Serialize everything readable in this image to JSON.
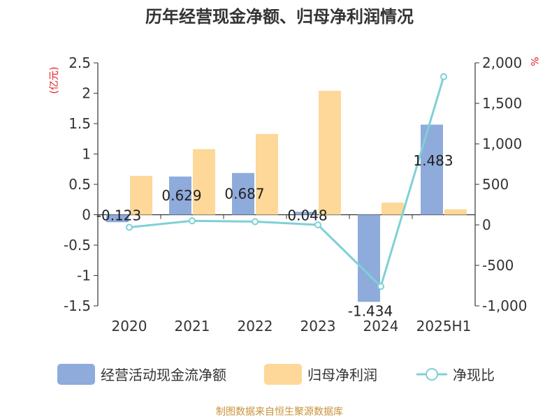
{
  "chart_data": {
    "type": "bar",
    "title": "历年经营现金净额、归母净利润情况",
    "categories": [
      "2020",
      "2021",
      "2022",
      "2023",
      "2024",
      "2025H1"
    ],
    "left_axis": {
      "unit": "(亿元)",
      "ylim": [
        -1.5,
        2.5
      ],
      "ticks": [
        "2.5",
        "2",
        "1.5",
        "1",
        "0.5",
        "0",
        "-0.5",
        "-1",
        "-1.5"
      ]
    },
    "right_axis": {
      "unit": "%",
      "ylim": [
        -1000,
        2000
      ],
      "ticks": [
        "2,000",
        "1,500",
        "1,000",
        "500",
        "0",
        "-500",
        "-1,000"
      ]
    },
    "series": [
      {
        "name": "经营活动现金流净额",
        "kind": "bar",
        "axis": "left",
        "color": "#8eabdb",
        "values": [
          -0.123,
          0.629,
          0.687,
          0.048,
          -1.434,
          1.483
        ],
        "labels": [
          "-0.123",
          "0.629",
          "0.687",
          "0.048",
          "-1.434",
          "1.483"
        ]
      },
      {
        "name": "归母净利润",
        "kind": "bar",
        "axis": "left",
        "color": "#fdd898",
        "values": [
          0.64,
          1.08,
          1.33,
          2.04,
          0.2,
          0.09
        ]
      },
      {
        "name": "净现比",
        "kind": "line",
        "axis": "right",
        "color": "#7fd0d6",
        "values": [
          -30,
          50,
          40,
          0,
          -760,
          1830
        ]
      }
    ],
    "grid": false,
    "legend_position": "bottom",
    "source": "制图数据来自恒生聚源数据库",
    "source_color": "#c8913a"
  }
}
